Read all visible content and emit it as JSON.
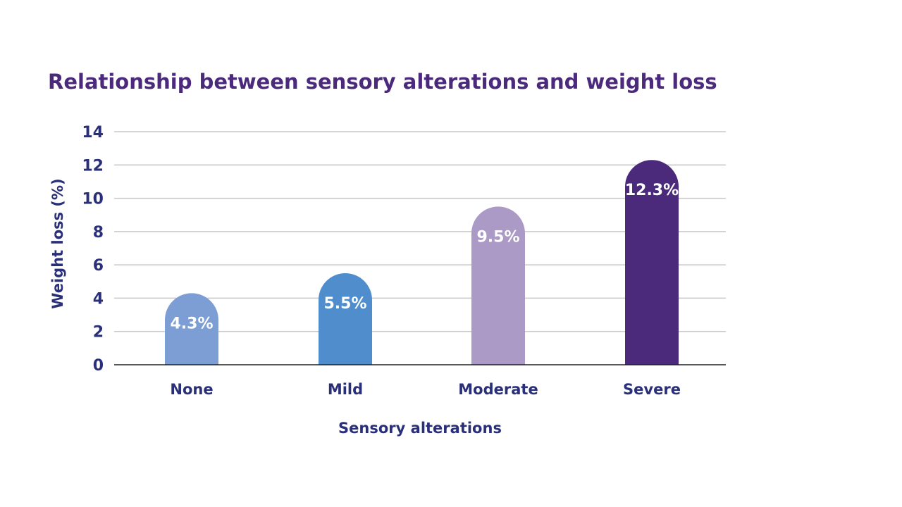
{
  "chart_data": {
    "type": "bar",
    "title": "Relationship between sensory alterations and weight loss",
    "xlabel": "Sensory alterations",
    "ylabel": "Weight loss (%)",
    "categories": [
      "None",
      "Mild",
      "Moderate",
      "Severe"
    ],
    "values": [
      4.3,
      5.5,
      9.5,
      12.3
    ],
    "data_labels": [
      "4.3%",
      "5.5%",
      "9.5%",
      "12.3%"
    ],
    "colors": [
      "#7d9ed4",
      "#4f8dcd",
      "#ab99c6",
      "#4b2a7b"
    ],
    "ylim": [
      0,
      14
    ],
    "yticks": [
      0,
      2,
      4,
      6,
      8,
      10,
      12,
      14
    ],
    "ytick_labels": [
      "0",
      "2",
      "4",
      "6",
      "8",
      "10",
      "12",
      "14"
    ],
    "grid": true,
    "legend": false
  }
}
